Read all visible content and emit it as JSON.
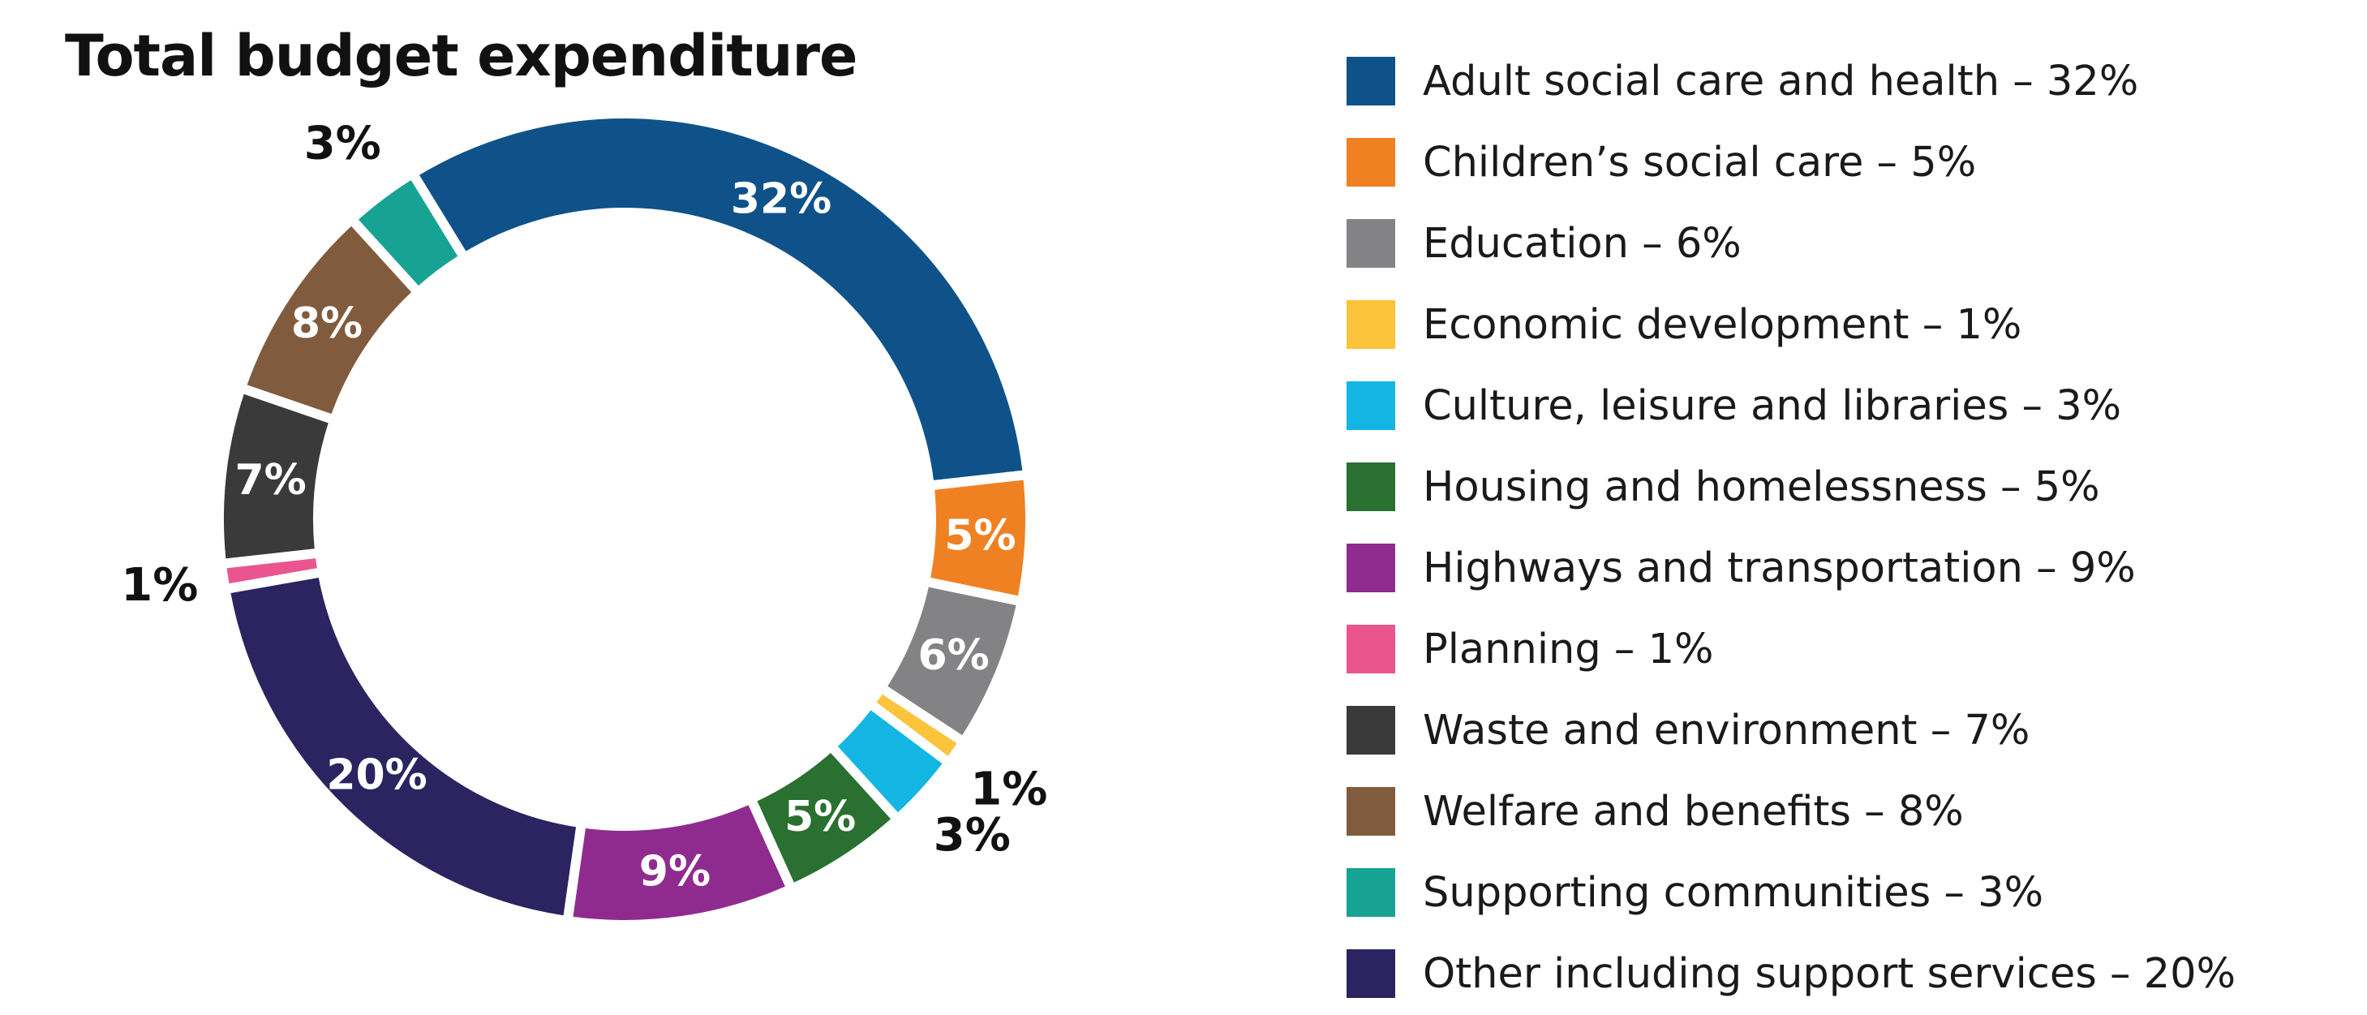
{
  "chart_data": {
    "type": "pie",
    "title": "Total budget expenditure",
    "slices": [
      {
        "name": "Adult social care and health",
        "legend_label": "Adult social care and health – 32%",
        "value": 32,
        "label": "32%",
        "color": "#0f5289",
        "label_inside": true
      },
      {
        "name": "Children’s social care",
        "legend_label": "Children’s social care – 5%",
        "value": 5,
        "label": "5%",
        "color": "#f08123",
        "label_inside": true
      },
      {
        "name": "Education",
        "legend_label": "Education – 6%",
        "value": 6,
        "label": "6%",
        "color": "#838385",
        "label_inside": true
      },
      {
        "name": "Economic development",
        "legend_label": "Economic development – 1%",
        "value": 1,
        "label": "1%",
        "color": "#fbc43b",
        "label_inside": false
      },
      {
        "name": "Culture, leisure and libraries",
        "legend_label": "Culture, leisure and libraries – 3%",
        "value": 3,
        "label": "3%",
        "color": "#13b5e3",
        "label_inside": false
      },
      {
        "name": "Housing and homelessness",
        "legend_label": "Housing and homelessness – 5%",
        "value": 5,
        "label": "5%",
        "color": "#2a7030",
        "label_inside": true
      },
      {
        "name": "Highways and transportation",
        "legend_label": "Highways and transportation – 9%",
        "value": 9,
        "label": "9%",
        "color": "#8f2b8e",
        "label_inside": true
      },
      {
        "name": "Other including support services",
        "legend_label": "Other including support services – 20%",
        "value": 20,
        "label": "20%",
        "color": "#2b2460",
        "label_inside": true
      },
      {
        "name": "Planning",
        "legend_label": "Planning – 1%",
        "value": 1,
        "label": "1%",
        "color": "#ea5590",
        "label_inside": false
      },
      {
        "name": "Waste and environment",
        "legend_label": "Waste and environment – 7%",
        "value": 7,
        "label": "7%",
        "color": "#3a3a3b",
        "label_inside": true
      },
      {
        "name": "Welfare and benefits",
        "legend_label": "Welfare and benefits – 8%",
        "value": 8,
        "label": "8%",
        "color": "#815b3e",
        "label_inside": true
      },
      {
        "name": "Supporting communities",
        "legend_label": "Supporting communities – 3%",
        "value": 3,
        "label": "3%",
        "color": "#16a394",
        "label_inside": false
      }
    ],
    "legend_order": [
      "Adult social care and health",
      "Children’s social care",
      "Education",
      "Economic development",
      "Culture, leisure and libraries",
      "Housing and homelessness",
      "Highways and transportation",
      "Planning",
      "Waste and environment",
      "Welfare and benefits",
      "Supporting communities",
      "Other including support services"
    ],
    "legend_position": "right"
  }
}
